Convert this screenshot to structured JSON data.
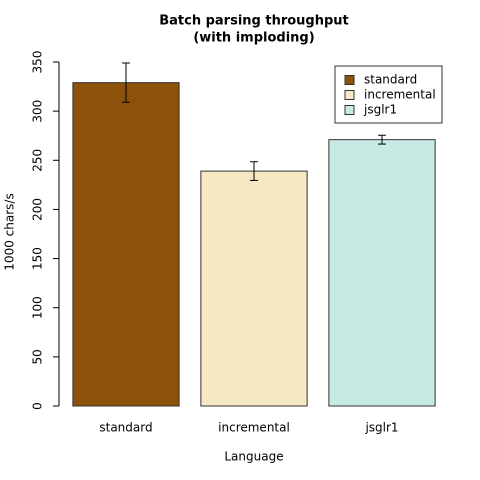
{
  "chart_data": {
    "type": "bar",
    "title": [
      "Batch parsing throughput",
      "(with imploding)"
    ],
    "x_label": "Language",
    "y_label": "1000 chars/s",
    "categories": [
      "standard",
      "incremental",
      "jsglr1"
    ],
    "values": [
      329,
      239,
      271
    ],
    "errors": [
      20,
      9.5,
      4.5
    ],
    "colors": [
      "#8c510a",
      "#f6e8c3",
      "#c7eae5"
    ],
    "ylim": [
      0,
      350
    ],
    "yticks": [
      0,
      50,
      100,
      150,
      200,
      250,
      300,
      350
    ],
    "grid": false,
    "legend": "top-right"
  }
}
